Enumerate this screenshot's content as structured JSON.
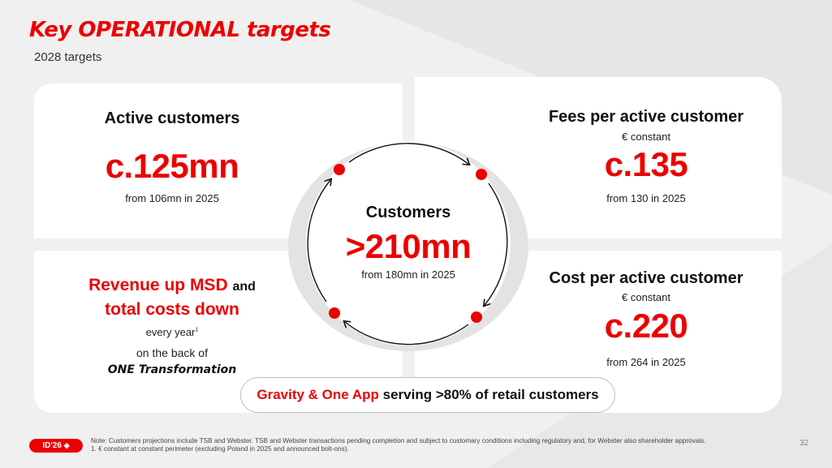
{
  "header": {
    "title": "Key OPERATIONAL targets",
    "subtitle": "2028 targets"
  },
  "center": {
    "heading": "Customers",
    "value": ">210mn",
    "from": "from 180mn in 2025"
  },
  "top_left": {
    "heading": "Active customers",
    "value": "c.125mn",
    "from": "from 106mn in 2025"
  },
  "top_right": {
    "heading": "Fees per active customer",
    "unit": "€ constant",
    "value": "c.135",
    "from": "from 130 in 2025"
  },
  "bottom_right": {
    "heading": "Cost per active customer",
    "unit": "€ constant",
    "value": "c.220",
    "from": "from 264 in 2025"
  },
  "bottom_left": {
    "line1_red": "Revenue up MSD",
    "line1_and": "and",
    "line2_red": "total costs down",
    "line3": "every year",
    "footnote_mark": "1",
    "line4": "on the back of",
    "line5": "ONE Transformation"
  },
  "pill": {
    "red_text": "Gravity & One App",
    "rest_text": "serving >80% of retail customers"
  },
  "footer": {
    "logo_text": "ID'26",
    "note_line1": "Note: Customers projections include TSB and Webster. TSB and Webster transactions pending completion and subject to customary conditions including regulatory and, for Webster also shareholder approvals.",
    "note_line2": "1.  € constant at constant perimeter (excluding Poland in 2025 and announced bolt-ons).",
    "page_number": "32"
  },
  "colors": {
    "accent": "#ec0000",
    "panel": "#ffffff",
    "background": "#f0f0f0"
  }
}
